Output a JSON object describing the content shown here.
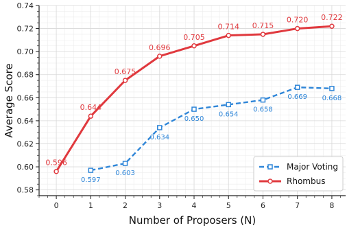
{
  "chart_data": {
    "type": "line",
    "xlabel": "Number of Proposers (N)",
    "ylabel": "Average Score",
    "xlim": [
      -0.5,
      8.4
    ],
    "ylim": [
      0.575,
      0.74
    ],
    "x_ticks": [
      0,
      1,
      2,
      3,
      4,
      5,
      6,
      7,
      8
    ],
    "y_ticks": [
      0.58,
      0.6,
      0.62,
      0.64,
      0.66,
      0.68,
      0.7,
      0.72,
      0.74
    ],
    "y_tick_labels": [
      "0.58",
      "0.60",
      "0.62",
      "0.64",
      "0.66",
      "0.68",
      "0.70",
      "0.72",
      "0.74"
    ],
    "grid": true,
    "legend_position": "bottom-right",
    "series": [
      {
        "name": "Major Voting",
        "color": "#2f86d8",
        "style": "dashed",
        "marker": "square",
        "x": [
          1,
          2,
          3,
          4,
          5,
          6,
          7,
          8
        ],
        "values": [
          0.597,
          0.603,
          0.634,
          0.65,
          0.654,
          0.658,
          0.669,
          0.668
        ],
        "labels": [
          "0.597",
          "0.603",
          "0.634",
          "0.650",
          "0.654",
          "0.658",
          "0.669",
          "0.668"
        ]
      },
      {
        "name": "Rhombus",
        "color": "#e0393e",
        "style": "solid",
        "marker": "circle",
        "x": [
          0,
          1,
          2,
          3,
          4,
          5,
          6,
          7,
          8
        ],
        "values": [
          0.596,
          0.644,
          0.675,
          0.696,
          0.705,
          0.714,
          0.715,
          0.72,
          0.722
        ],
        "labels": [
          "0.596",
          "0.644",
          "0.675",
          "0.696",
          "0.705",
          "0.714",
          "0.715",
          "0.720",
          "0.722"
        ]
      }
    ]
  }
}
